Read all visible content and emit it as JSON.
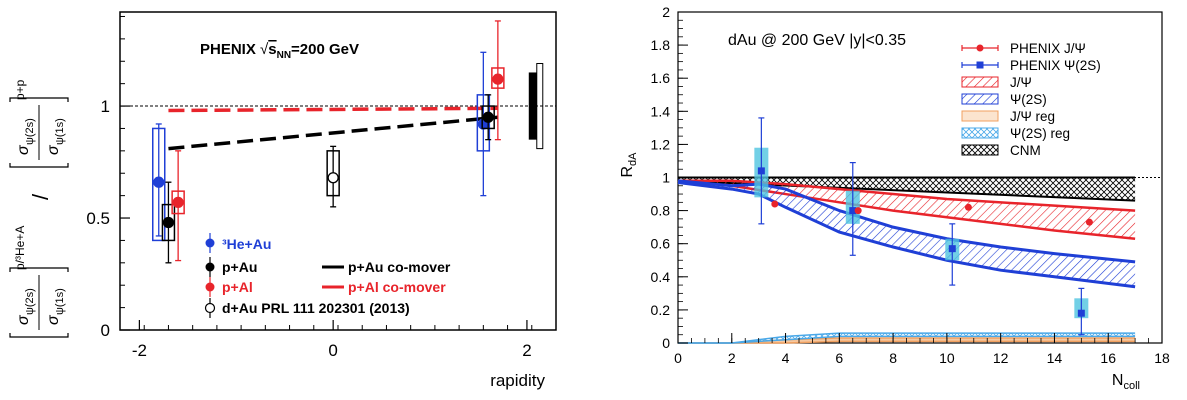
{
  "chart_data": [
    {
      "type": "scatter",
      "panel": "left",
      "title": "PHENIX √s_NN=200 GeV",
      "title_parts": {
        "main": "PHENIX ",
        "sqrt": "√",
        "s": "s",
        "sub": "NN",
        "rest": "=200 GeV"
      },
      "xlabel": "rapidity",
      "xlim": [
        -2.2,
        2.3
      ],
      "ylim": [
        0,
        1.42
      ],
      "x_ticks": [
        {
          "v": -2,
          "label": "-2"
        },
        {
          "v": 0,
          "label": "0"
        },
        {
          "v": 2,
          "label": "2"
        }
      ],
      "y_ticks": [
        {
          "v": 0,
          "label": "0"
        },
        {
          "v": 0.5,
          "label": "0.5"
        },
        {
          "v": 1,
          "label": "1"
        }
      ],
      "ylabel_parts": {
        "psi2s": "ψ(2s)",
        "psi1s": "ψ(1s)",
        "sigma": "σ",
        "pp": "p+p",
        "phe": "p/³He+A",
        "slash": "/"
      },
      "reference_line": 1.0,
      "series": [
        {
          "name": "³He+Au",
          "color": "#1f3fd6",
          "open": false,
          "points": [
            {
              "x": -1.8,
              "y": 0.66,
              "err": [
                0.42,
                0.92
              ],
              "sys": [
                0.4,
                0.9
              ]
            },
            {
              "x": 1.55,
              "y": 0.92,
              "err": [
                0.6,
                1.24
              ],
              "sys": [
                0.8,
                1.05
              ]
            }
          ]
        },
        {
          "name": "p+Au",
          "color": "#000000",
          "open": false,
          "points": [
            {
              "x": -1.7,
              "y": 0.48,
              "err": [
                0.3,
                0.66
              ],
              "sys": [
                0.4,
                0.56
              ]
            },
            {
              "x": 1.6,
              "y": 0.95,
              "err": [
                0.85,
                1.05
              ],
              "sys": [
                0.9,
                1.0
              ]
            }
          ]
        },
        {
          "name": "p+Al",
          "color": "#e8242b",
          "open": false,
          "points": [
            {
              "x": -1.6,
              "y": 0.57,
              "err": [
                0.31,
                0.8
              ],
              "sys": [
                0.52,
                0.62
              ]
            },
            {
              "x": 1.7,
              "y": 1.12,
              "err": [
                0.85,
                1.38
              ],
              "sys": [
                1.08,
                1.17
              ]
            }
          ]
        },
        {
          "name": "d+Au PRL 111 202301 (2013)",
          "color": "#000000",
          "open": true,
          "points": [
            {
              "x": 0.0,
              "y": 0.68,
              "err": [
                0.55,
                0.82
              ],
              "sys": [
                0.6,
                0.8
              ]
            }
          ]
        }
      ],
      "global_box": {
        "x": 2.05,
        "y": [
          0.85,
          1.15
        ]
      },
      "comover": [
        {
          "name": "p+Au co-mover",
          "color": "#000000",
          "x": [
            -1.7,
            1.7
          ],
          "y": [
            0.81,
            0.95
          ]
        },
        {
          "name": "p+Al co-mover",
          "color": "#e8242b",
          "x": [
            -1.7,
            1.7
          ],
          "y": [
            0.98,
            0.99
          ]
        }
      ]
    },
    {
      "type": "line",
      "panel": "right",
      "title": "dAu @ 200 GeV |y|<0.35",
      "xlabel": "N_coll",
      "xlabel_parts": {
        "main": "N",
        "sub": "coll"
      },
      "ylabel": "R_dA",
      "ylabel_parts": {
        "main": "R",
        "sub": "dA"
      },
      "xlim": [
        0,
        18
      ],
      "ylim": [
        0,
        2
      ],
      "x_ticks": [
        0,
        2,
        4,
        6,
        8,
        10,
        12,
        14,
        16,
        18
      ],
      "y_ticks": [
        0,
        0.2,
        0.4,
        0.6,
        0.8,
        1,
        1.2,
        1.4,
        1.6,
        1.8,
        2
      ],
      "reference_line": 1.0,
      "legend": [
        {
          "label": "PHENIX J/Ψ",
          "kind": "marker-circle",
          "color": "#e8242b"
        },
        {
          "label": "PHENIX Ψ(2S)",
          "kind": "marker-square",
          "color": "#1f3fd6"
        },
        {
          "label": "J/Ψ",
          "kind": "hatch-band",
          "color": "#e8242b"
        },
        {
          "label": "Ψ(2S)",
          "kind": "hatch-band",
          "color": "#1f3fd6"
        },
        {
          "label": "J/Ψ reg",
          "kind": "band",
          "color": "#f0a060"
        },
        {
          "label": "Ψ(2S) reg",
          "kind": "cross-band",
          "color": "#4aa8e8"
        },
        {
          "label": "CNM",
          "kind": "cross-band",
          "color": "#000000"
        }
      ],
      "data": {
        "phenix_jpsi": [
          {
            "x": 3.6,
            "y": 0.84
          },
          {
            "x": 6.7,
            "y": 0.8
          },
          {
            "x": 10.8,
            "y": 0.82
          },
          {
            "x": 15.3,
            "y": 0.73
          }
        ],
        "phenix_psi2s": [
          {
            "x": 3.1,
            "y": 1.04,
            "err": [
              0.72,
              1.36
            ],
            "sys": [
              0.88,
              1.18
            ]
          },
          {
            "x": 6.5,
            "y": 0.8,
            "err": [
              0.53,
              1.09
            ],
            "sys": [
              0.72,
              0.92
            ]
          },
          {
            "x": 10.2,
            "y": 0.57,
            "err": [
              0.35,
              0.72
            ],
            "sys": [
              0.5,
              0.63
            ]
          },
          {
            "x": 15.0,
            "y": 0.18,
            "err": [
              0.05,
              0.33
            ],
            "sys": [
              0.15,
              0.27
            ]
          }
        ],
        "cnm": {
          "x": [
            0,
            17
          ],
          "upper": [
            1.0,
            1.0
          ],
          "lower": [
            0.98,
            0.86
          ]
        },
        "jpsi_band": {
          "x": [
            0,
            2,
            4,
            6,
            8,
            10,
            12,
            14,
            17
          ],
          "upper": [
            0.98,
            0.98,
            0.96,
            0.93,
            0.9,
            0.87,
            0.85,
            0.83,
            0.8
          ],
          "lower": [
            0.98,
            0.95,
            0.9,
            0.85,
            0.8,
            0.76,
            0.72,
            0.68,
            0.63
          ]
        },
        "psi2s_band": {
          "x": [
            0,
            2,
            3,
            4,
            6,
            8,
            10,
            12,
            14,
            17
          ],
          "upper": [
            0.98,
            0.95,
            0.96,
            0.93,
            0.8,
            0.7,
            0.63,
            0.58,
            0.54,
            0.49
          ],
          "lower": [
            0.97,
            0.93,
            0.9,
            0.82,
            0.67,
            0.58,
            0.5,
            0.44,
            0.4,
            0.34
          ]
        },
        "jpsi_reg": {
          "x": [
            0,
            2,
            4,
            6,
            17
          ],
          "upper": [
            0,
            0.0,
            0.02,
            0.03,
            0.03
          ],
          "lower": [
            0,
            0,
            0.0,
            0.01,
            0.01
          ]
        },
        "psi2s_reg": {
          "x": [
            0,
            2,
            4,
            6,
            17
          ],
          "upper": [
            0,
            0.0,
            0.04,
            0.06,
            0.06
          ],
          "lower": [
            0,
            0,
            0.02,
            0.04,
            0.04
          ]
        }
      }
    }
  ]
}
